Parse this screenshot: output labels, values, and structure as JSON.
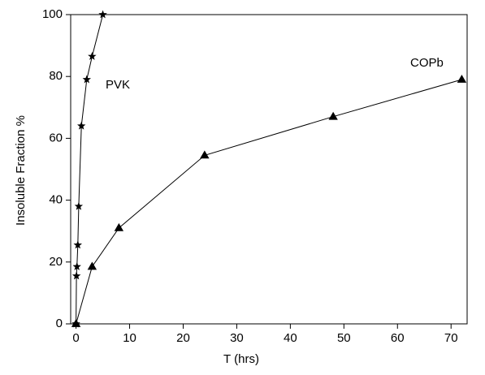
{
  "chart_data": {
    "type": "line",
    "xlabel": "T (hrs)",
    "ylabel": "Insoluble Fraction %",
    "xlim": [
      -1,
      73
    ],
    "ylim": [
      0,
      100
    ],
    "xticks": [
      0,
      10,
      20,
      30,
      40,
      50,
      60,
      70
    ],
    "yticks": [
      0,
      20,
      40,
      60,
      80,
      100
    ],
    "series": [
      {
        "name": "PVK",
        "color": "#000000",
        "marker": "star",
        "x": [
          0,
          0.08,
          0.17,
          0.33,
          0.5,
          1,
          2,
          3,
          5
        ],
        "values": [
          0,
          15.5,
          18.5,
          25.5,
          38,
          64,
          79,
          86.5,
          100
        ]
      },
      {
        "name": "COPb",
        "color": "#000000",
        "marker": "triangle",
        "x": [
          0,
          3,
          8,
          24,
          48,
          72
        ],
        "values": [
          0,
          18.5,
          31,
          54.5,
          67,
          79
        ]
      }
    ]
  }
}
